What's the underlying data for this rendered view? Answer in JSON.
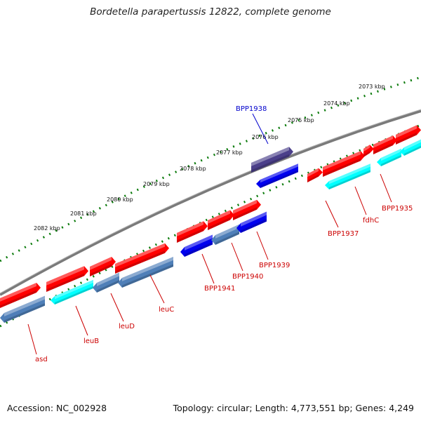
{
  "title": "Bordetella parapertussis 12822, complete genome",
  "footer": {
    "accession": "Accession: NC_002928",
    "summary": "Topology: circular; Length: 4,773,551 bp; Genes: 4,249"
  },
  "scale_labels": [
    "2082 kbp",
    "2081 kbp",
    "2080 kbp",
    "2079 kbp",
    "2078 kbp",
    "2077 kbp",
    "2076 kbp",
    "2075 kbp",
    "2074 kbp",
    "2073 kbp"
  ],
  "colors": {
    "backbone": "#808080",
    "forward_gene": "#ff0000",
    "reverse_gene": "#4f7fb8",
    "cyan_gene": "#00ffff",
    "blue_gene": "#0000ee",
    "highlight_gene": "#4b3f8a",
    "tick_green": "#0a7a0a",
    "label_red": "#cc0000",
    "label_blue": "#0000cc"
  },
  "gene_labels": [
    {
      "text": "asd",
      "color": "red"
    },
    {
      "text": "leuB",
      "color": "red"
    },
    {
      "text": "leuD",
      "color": "red"
    },
    {
      "text": "leuC",
      "color": "red"
    },
    {
      "text": "BPP1941",
      "color": "red"
    },
    {
      "text": "BPP1940",
      "color": "red"
    },
    {
      "text": "BPP1939",
      "color": "red"
    },
    {
      "text": "BPP1937",
      "color": "red"
    },
    {
      "text": "fdhC",
      "color": "red"
    },
    {
      "text": "BPP1935",
      "color": "red"
    },
    {
      "text": "BPP1938",
      "color": "blue"
    }
  ]
}
